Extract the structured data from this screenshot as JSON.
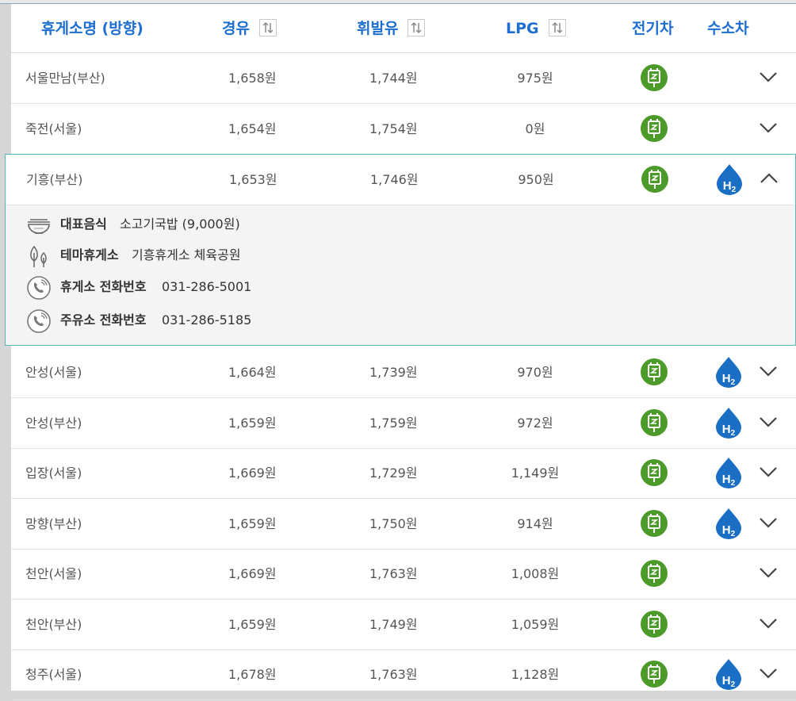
{
  "header": {
    "name_label": "휴게소명 (방향)",
    "diesel_label": "경유",
    "gasoline_label": "휘발유",
    "lpg_label": "LPG",
    "ev_label": "전기차",
    "hydrogen_label": "수소차"
  },
  "rows": [
    {
      "name": "서울만남(부산)",
      "diesel": "1,658원",
      "gasoline": "1,744원",
      "lpg": "975원",
      "ev": true,
      "h2": false,
      "expanded": false
    },
    {
      "name": "죽전(서울)",
      "diesel": "1,654원",
      "gasoline": "1,754원",
      "lpg": "0원",
      "ev": true,
      "h2": false,
      "expanded": false
    },
    {
      "name": "기흥(부산)",
      "diesel": "1,653원",
      "gasoline": "1,746원",
      "lpg": "950원",
      "ev": true,
      "h2": true,
      "expanded": true
    },
    {
      "name": "안성(서울)",
      "diesel": "1,664원",
      "gasoline": "1,739원",
      "lpg": "970원",
      "ev": true,
      "h2": true,
      "expanded": false
    },
    {
      "name": "안성(부산)",
      "diesel": "1,659원",
      "gasoline": "1,759원",
      "lpg": "972원",
      "ev": true,
      "h2": true,
      "expanded": false
    },
    {
      "name": "입장(서울)",
      "diesel": "1,669원",
      "gasoline": "1,729원",
      "lpg": "1,149원",
      "ev": true,
      "h2": true,
      "expanded": false
    },
    {
      "name": "망향(부산)",
      "diesel": "1,659원",
      "gasoline": "1,750원",
      "lpg": "914원",
      "ev": true,
      "h2": true,
      "expanded": false
    },
    {
      "name": "천안(서울)",
      "diesel": "1,669원",
      "gasoline": "1,763원",
      "lpg": "1,008원",
      "ev": true,
      "h2": false,
      "expanded": false
    },
    {
      "name": "천안(부산)",
      "diesel": "1,659원",
      "gasoline": "1,749원",
      "lpg": "1,059원",
      "ev": true,
      "h2": false,
      "expanded": false
    },
    {
      "name": "청주(서울)",
      "diesel": "1,678원",
      "gasoline": "1,763원",
      "lpg": "1,128원",
      "ev": true,
      "h2": true,
      "expanded": false
    }
  ],
  "detail": {
    "food_label": "대표음식",
    "food_value": "소고기국밥 (9,000원)",
    "theme_label": "테마휴게소",
    "theme_value": "기흥휴게소 체육공원",
    "rest_phone_label": "휴게소 전화번호",
    "rest_phone_value": "031-286-5001",
    "gas_phone_label": "주유소 전화번호",
    "gas_phone_value": "031-286-5185"
  },
  "icons": {
    "sort": "sort-arrows-icon",
    "ev": "ev-charger-icon",
    "h2": "hydrogen-drop-icon",
    "expand": "chevron-down-icon",
    "collapse": "chevron-up-icon",
    "food": "bowl-icon",
    "theme": "tree-icon",
    "phone": "phone-icon"
  },
  "colors": {
    "header_text": "#1e6fd1",
    "ev_green": "#4c9a2a",
    "h2_blue": "#1a6fc4",
    "expanded_border": "#58b5b5",
    "detail_bg": "#f4f4f4"
  }
}
